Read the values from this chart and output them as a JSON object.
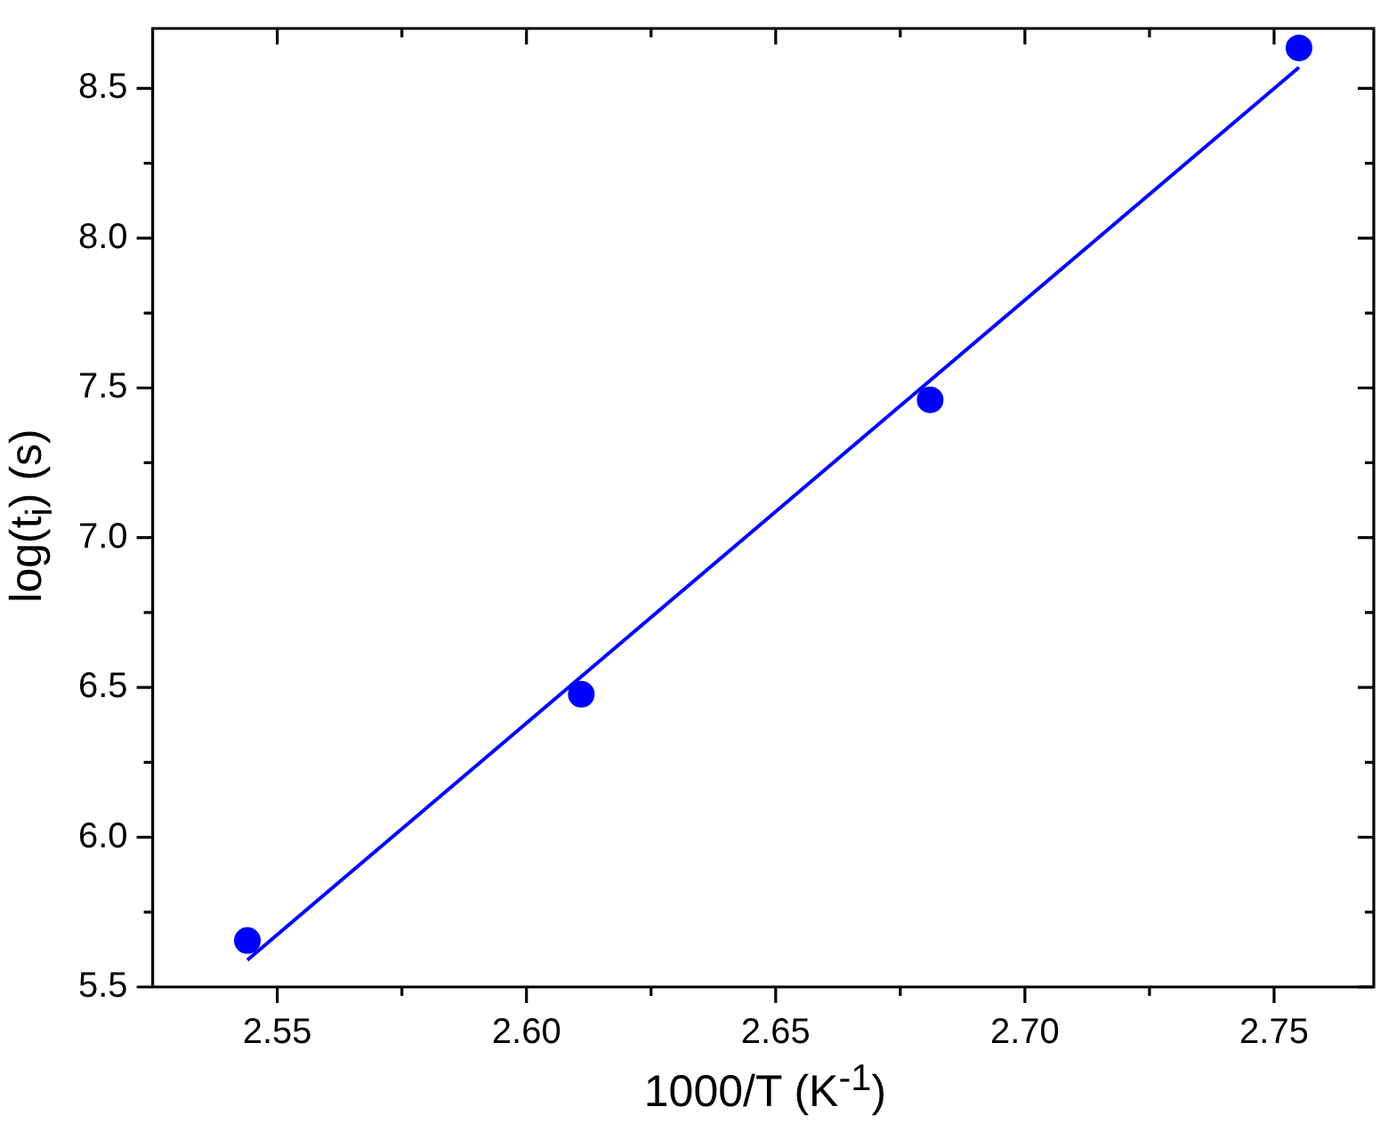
{
  "chart_data": {
    "type": "scatter",
    "xlabel": "1000/T (K$^{-1}$)",
    "ylabel": "log(t$_{i}$) (s)",
    "series": [
      {
        "type": "scatter",
        "color": "#0000ff",
        "x": [
          2.544,
          2.611,
          2.681,
          2.755
        ],
        "values": [
          5.655,
          6.477,
          7.46,
          8.635
        ],
        "marker": "circle"
      },
      {
        "type": "line",
        "color": "#0000ff",
        "x": [
          2.544,
          2.755
        ],
        "values": [
          5.59,
          8.57
        ],
        "marker": "none",
        "line_style": "solid"
      }
    ],
    "xlim": [
      2.525,
      2.77
    ],
    "xticks": [
      2.55,
      {
        "value": 2.575,
        "label": null
      },
      {
        "value": 2.6,
        "label": "2.60"
      },
      {
        "value": 2.625,
        "label": null
      },
      2.65,
      {
        "value": 2.675,
        "label": null
      },
      {
        "value": 2.7,
        "label": "2.70"
      },
      {
        "value": 2.725,
        "label": null
      },
      2.75
    ],
    "ylim": [
      5.5,
      8.7
    ],
    "yticks": [
      5.5,
      {
        "value": 5.75,
        "label": null
      },
      {
        "value": 6,
        "label": "6.0"
      },
      {
        "value": 6.25,
        "label": null
      },
      6.5,
      {
        "value": 6.75,
        "label": null
      },
      {
        "value": 7,
        "label": "7.0"
      },
      {
        "value": 7.25,
        "label": null
      },
      7.5,
      {
        "value": 7.75,
        "label": null
      },
      {
        "value": 8,
        "label": "8.0"
      },
      {
        "value": 8.25,
        "label": null
      },
      8.5
    ],
    "grid": false,
    "legend": false
  }
}
